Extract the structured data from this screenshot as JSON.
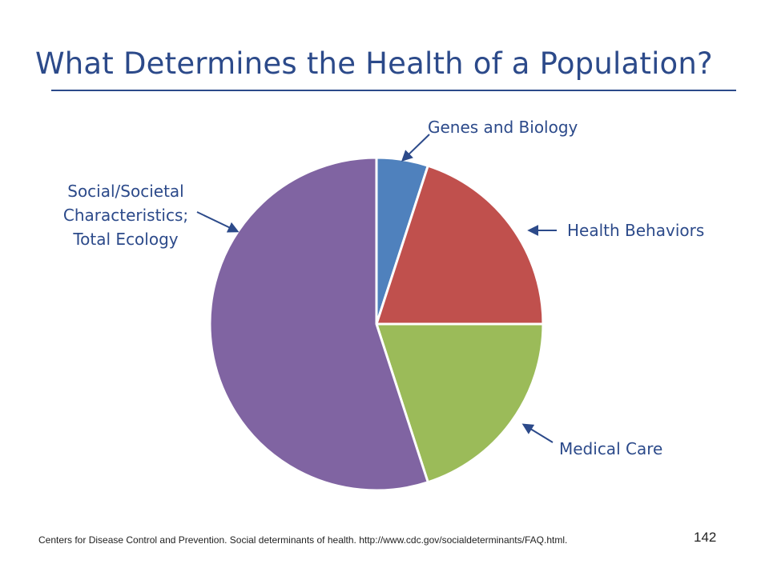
{
  "slide": {
    "title": "What Determines the Health of a Population?",
    "footnote": "Centers for Disease Control and Prevention. Social determinants of health. http://www.cdc.gov/socialdeterminants/FAQ.html.",
    "page_number": "142"
  },
  "colors": {
    "title": "#2c4a8a",
    "label": "#2c4a8a"
  },
  "chart_data": {
    "type": "pie",
    "title": "",
    "legend": "none",
    "slices": [
      {
        "label": "Genes and Biology",
        "value": 5,
        "color": "#4f81bd"
      },
      {
        "label": "Health Behaviors",
        "value": 20,
        "color": "#c0504d"
      },
      {
        "label": "Medical Care",
        "value": 20,
        "color": "#9bbb59"
      },
      {
        "label": "Social/Societal Characteristics; Total Ecology",
        "value": 55,
        "color": "#8064a2",
        "label_lines": [
          "Social/Societal",
          "Characteristics;",
          "Total Ecology"
        ]
      }
    ]
  }
}
